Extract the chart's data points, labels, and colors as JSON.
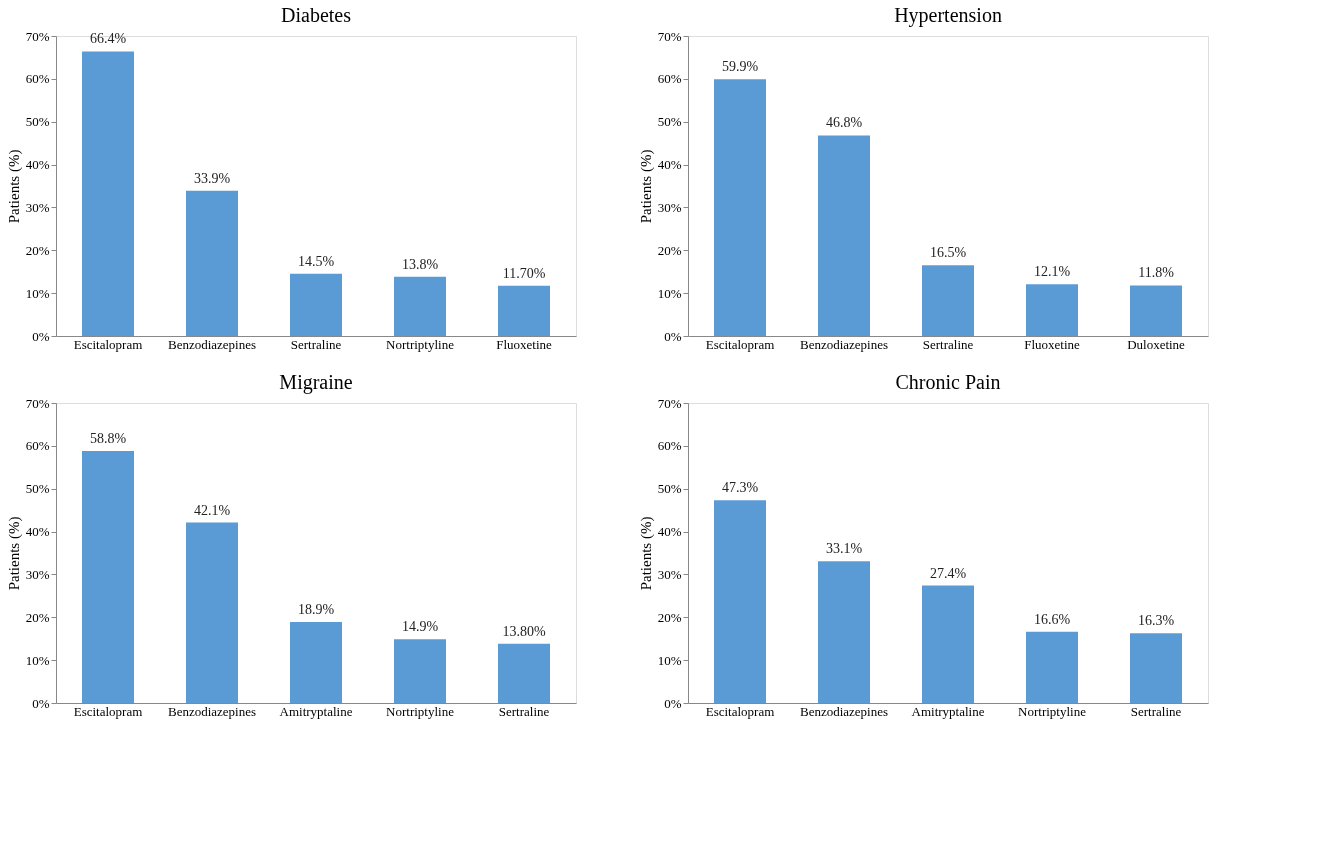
{
  "chart_data": [
    {
      "type": "bar",
      "title": "Diabetes",
      "ylabel": "Patients (%)",
      "categories": [
        "Escitalopram",
        "Benzodiazepines",
        "Sertraline",
        "Nortriptyline",
        "Fluoxetine"
      ],
      "values": [
        66.4,
        33.9,
        14.5,
        13.8,
        11.7
      ],
      "value_labels": [
        "66.4%",
        "33.9%",
        "14.5%",
        "13.8%",
        "11.70%"
      ],
      "color": "#5b9bd5",
      "ylim": [
        0,
        70
      ],
      "yticks": [
        {
          "value": 0,
          "label": "0%"
        },
        {
          "value": 10,
          "label": "10%"
        },
        {
          "value": 20,
          "label": "20%"
        },
        {
          "value": 30,
          "label": "30%"
        },
        {
          "value": 40,
          "label": "40%"
        },
        {
          "value": 50,
          "label": "50%"
        },
        {
          "value": 60,
          "label": "60%"
        },
        {
          "value": 70,
          "label": "70%"
        }
      ],
      "grid": false
    },
    {
      "type": "bar",
      "title": "Hypertension",
      "ylabel": "Patients (%)",
      "categories": [
        "Escitalopram",
        "Benzodiazepines",
        "Sertraline",
        "Fluoxetine",
        "Duloxetine"
      ],
      "values": [
        59.9,
        46.8,
        16.5,
        12.1,
        11.8
      ],
      "value_labels": [
        "59.9%",
        "46.8%",
        "16.5%",
        "12.1%",
        "11.8%"
      ],
      "color": "#5b9bd5",
      "ylim": [
        0,
        70
      ],
      "yticks": [
        {
          "value": 0,
          "label": "0%"
        },
        {
          "value": 10,
          "label": "10%"
        },
        {
          "value": 20,
          "label": "20%"
        },
        {
          "value": 30,
          "label": "30%"
        },
        {
          "value": 40,
          "label": "40%"
        },
        {
          "value": 50,
          "label": "50%"
        },
        {
          "value": 60,
          "label": "60%"
        },
        {
          "value": 70,
          "label": "70%"
        }
      ],
      "grid": false
    },
    {
      "type": "bar",
      "title": "Migraine",
      "ylabel": "Patients (%)",
      "categories": [
        "Escitalopram",
        "Benzodiazepines",
        "Amitryptaline",
        "Nortriptyline",
        "Sertraline"
      ],
      "values": [
        58.8,
        42.1,
        18.9,
        14.9,
        13.8
      ],
      "value_labels": [
        "58.8%",
        "42.1%",
        "18.9%",
        "14.9%",
        "13.80%"
      ],
      "color": "#5b9bd5",
      "ylim": [
        0,
        70
      ],
      "yticks": [
        {
          "value": 0,
          "label": "0%"
        },
        {
          "value": 10,
          "label": "10%"
        },
        {
          "value": 20,
          "label": "20%"
        },
        {
          "value": 30,
          "label": "30%"
        },
        {
          "value": 40,
          "label": "40%"
        },
        {
          "value": 50,
          "label": "50%"
        },
        {
          "value": 60,
          "label": "60%"
        },
        {
          "value": 70,
          "label": "70%"
        }
      ],
      "grid": false
    },
    {
      "type": "bar",
      "title": "Chronic Pain",
      "ylabel": "Patients (%)",
      "categories": [
        "Escitalopram",
        "Benzodiazepines",
        "Amitryptaline",
        "Nortriptyline",
        "Sertraline"
      ],
      "values": [
        47.3,
        33.1,
        27.4,
        16.6,
        16.3
      ],
      "value_labels": [
        "47.3%",
        "33.1%",
        "27.4%",
        "16.6%",
        "16.3%"
      ],
      "color": "#5b9bd5",
      "ylim": [
        0,
        70
      ],
      "yticks": [
        {
          "value": 0,
          "label": "0%"
        },
        {
          "value": 10,
          "label": "10%"
        },
        {
          "value": 20,
          "label": "20%"
        },
        {
          "value": 30,
          "label": "30%"
        },
        {
          "value": 40,
          "label": "40%"
        },
        {
          "value": 50,
          "label": "50%"
        },
        {
          "value": 60,
          "label": "60%"
        },
        {
          "value": 70,
          "label": "70%"
        }
      ],
      "grid": false
    }
  ]
}
